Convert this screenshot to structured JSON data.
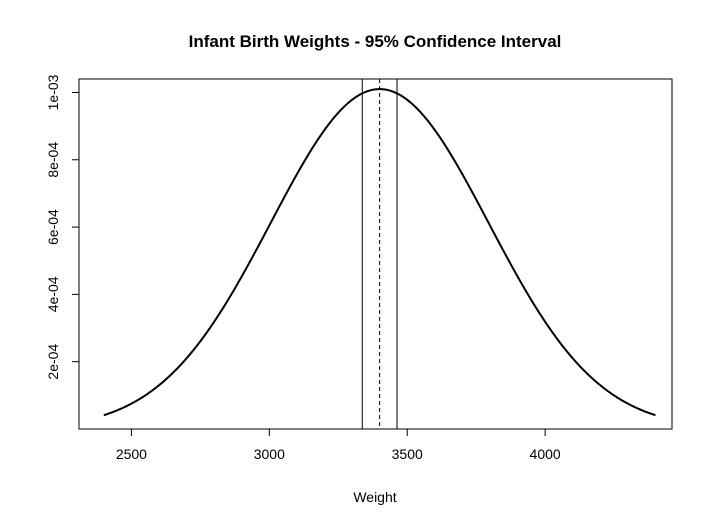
{
  "chart_data": {
    "type": "line",
    "title": "Infant Birth Weights - 95% Confidence Interval",
    "xlabel": "Weight",
    "ylabel": "",
    "xlim": [
      2310,
      4460
    ],
    "ylim": [
      0,
      0.00104
    ],
    "x_ticks": [
      2500,
      3000,
      3500,
      4000
    ],
    "x_tick_labels": [
      "2500",
      "3000",
      "3500",
      "4000"
    ],
    "y_ticks": [
      0.0002,
      0.0004,
      0.0006,
      0.0008,
      0.001
    ],
    "y_tick_labels": [
      "2e-04",
      "4e-04",
      "6e-04",
      "8e-04",
      "1e-03"
    ],
    "series": [
      {
        "distribution": "normal",
        "mean": 3400,
        "sd": 395,
        "x_range": [
          2400,
          4400
        ],
        "color": "#000000"
      }
    ],
    "vertical_lines": [
      {
        "x": 3337,
        "style": "solid"
      },
      {
        "x": 3400,
        "style": "dashed"
      },
      {
        "x": 3463,
        "style": "solid"
      }
    ],
    "grid": false,
    "legend": "none"
  }
}
